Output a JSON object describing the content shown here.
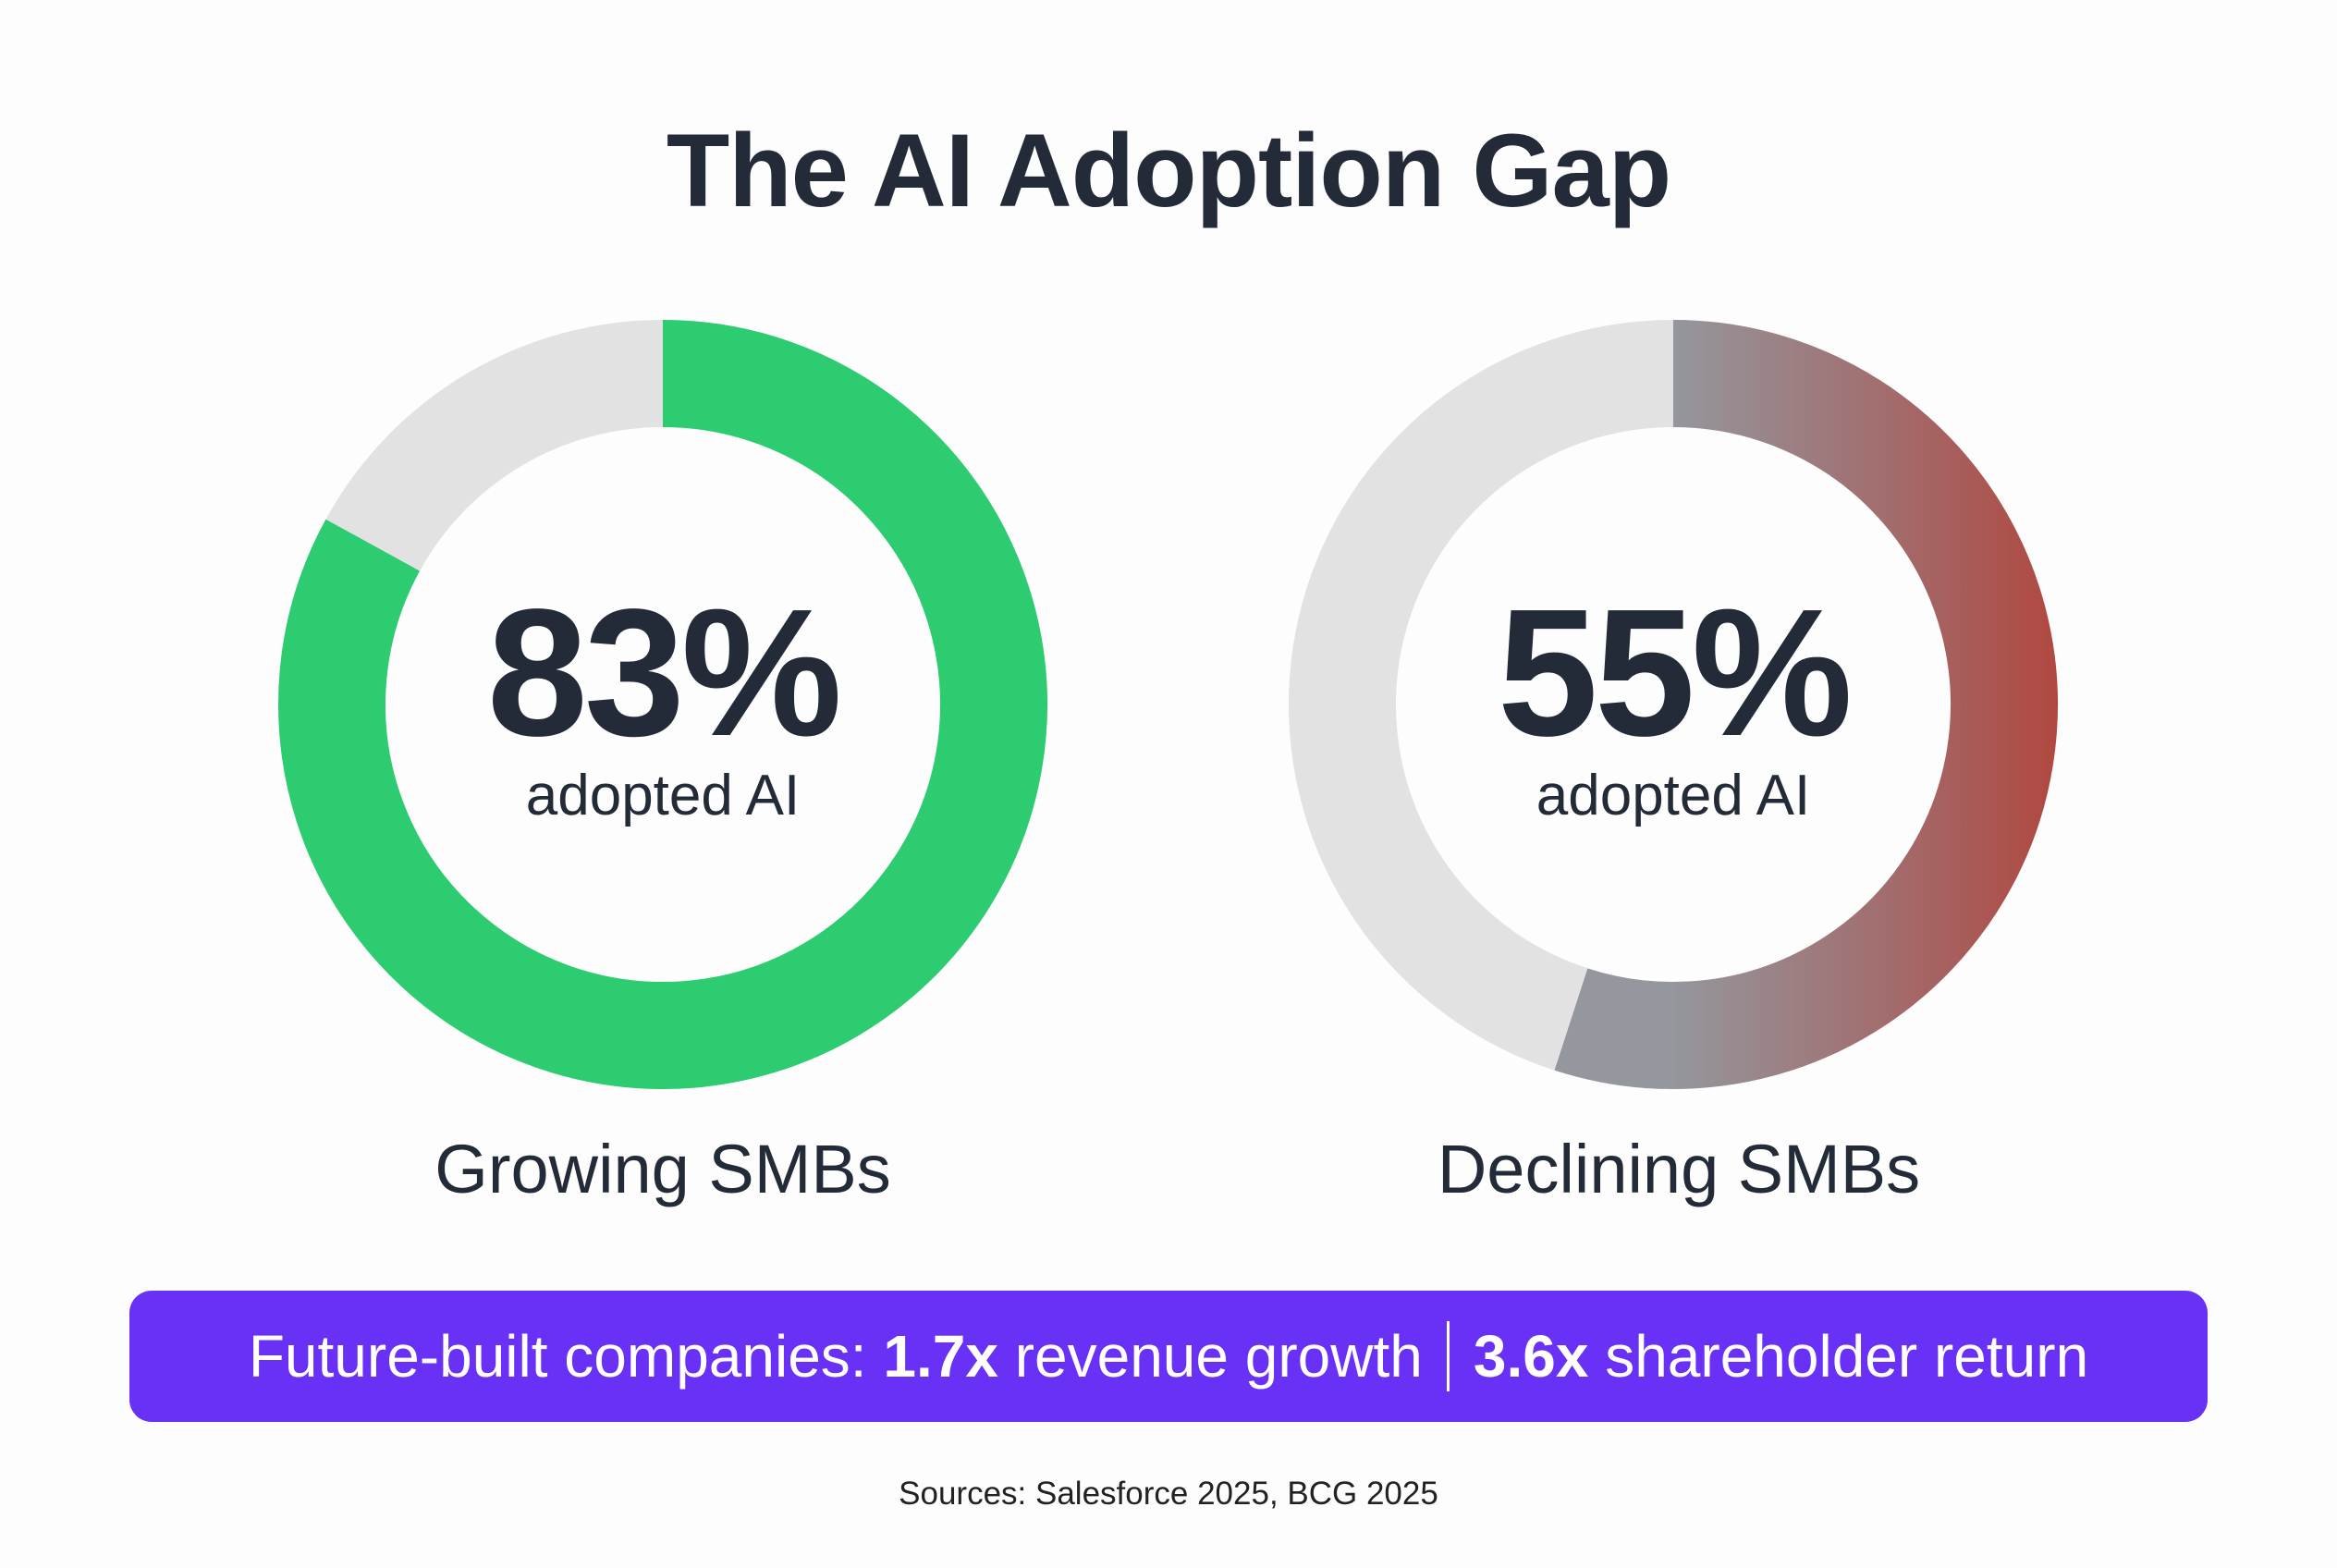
{
  "chart_data": [
    {
      "type": "pie",
      "variant": "donut",
      "title": "The AI Adoption Gap",
      "value_label": "83%",
      "value_caption": "adopted AI",
      "category": "Growing SMBs",
      "values": [
        83,
        17
      ],
      "colors": [
        "#2ecc71",
        "#e2e2e2"
      ]
    },
    {
      "type": "pie",
      "variant": "donut",
      "value_label": "55%",
      "value_caption": "adopted AI",
      "category": "Declining SMBs",
      "values": [
        55,
        45
      ],
      "colors": [
        "gradient:#94979d-#b04840",
        "#e2e2e2"
      ]
    }
  ],
  "title": "The AI Adoption Gap",
  "banner": {
    "prefix": "Future-built companies: ",
    "stat1": "1.7x",
    "text1": " revenue growth",
    "stat2": "3.6x",
    "text2": " shareholder return",
    "color": "#6930f5"
  },
  "sources": "Sources: Salesforce 2025, BCG 2025"
}
